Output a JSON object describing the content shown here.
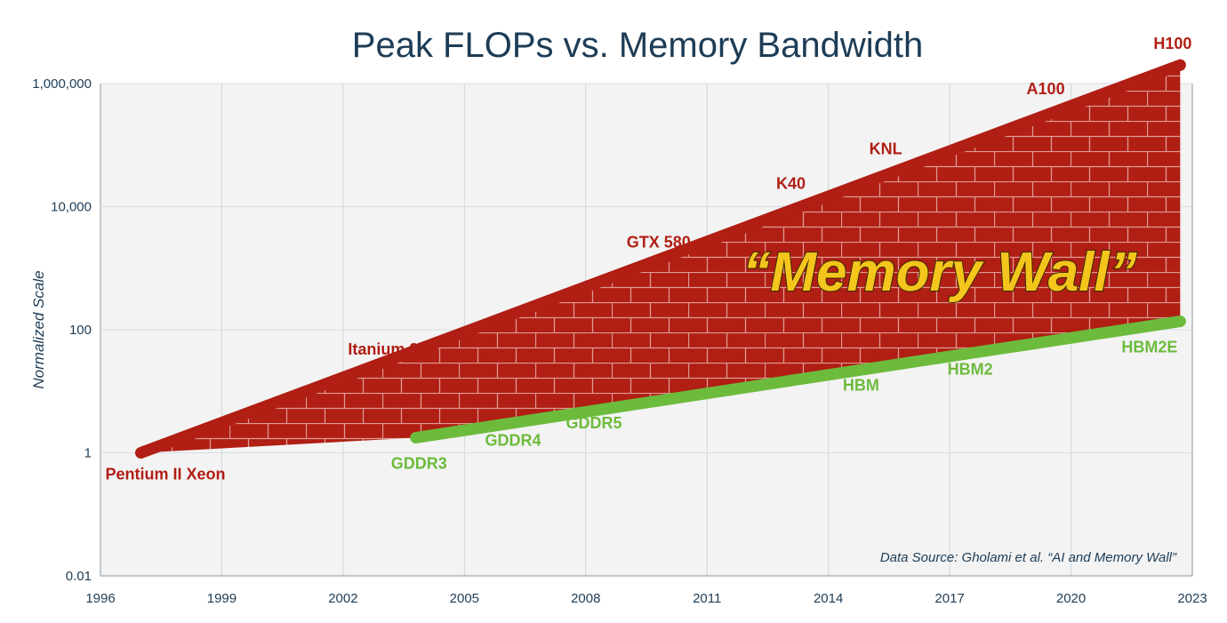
{
  "chart_data": {
    "type": "line",
    "title": "Peak FLOPs vs. Memory Bandwidth",
    "xlabel": "",
    "ylabel": "Normalized Scale",
    "xlim": [
      1996,
      2023
    ],
    "ylim": [
      0.01,
      1000000
    ],
    "yscale": "log",
    "grid": true,
    "x_ticks": [
      "1996",
      "1999",
      "2002",
      "2005",
      "2008",
      "2011",
      "2014",
      "2017",
      "2020",
      "2023"
    ],
    "y_ticks": [
      "0.01",
      "1",
      "100",
      "10,000",
      "1,000,000"
    ],
    "series": [
      {
        "color": "#b01e14",
        "points": [
          {
            "label": "Pentium II Xeon",
            "x": 1997,
            "y": 1
          },
          {
            "label": "Itanium 2",
            "x": 2003,
            "y": 30
          },
          {
            "label": "GTX 580",
            "x": 2010,
            "y": 1550
          },
          {
            "label": "K40",
            "x": 2013.7,
            "y": 12600
          },
          {
            "label": "KNL",
            "x": 2016,
            "y": 46000
          },
          {
            "label": "A100",
            "x": 2020,
            "y": 450000
          },
          {
            "label": "H100",
            "x": 2022.7,
            "y": 2000000
          }
        ]
      },
      {
        "color": "#6dbb3c",
        "points": [
          {
            "label": "GDDR3",
            "x": 2003.8,
            "y": 1.76
          },
          {
            "label": "GDDR4",
            "x": 2006.5,
            "y": 3.3
          },
          {
            "label": "GDDR5",
            "x": 2008.5,
            "y": 5.2
          },
          {
            "label": "HBM",
            "x": 2015.5,
            "y": 26
          },
          {
            "label": "HBM2",
            "x": 2018,
            "y": 47
          },
          {
            "label": "HBM2E",
            "x": 2022.7,
            "y": 137
          }
        ]
      }
    ],
    "annotation": "“Memory Wall”",
    "source": "Data Source: Gholami et al. “AI and Memory Wall”",
    "colors": {
      "wall_fill": "#b01e14",
      "wall_text": "#f4c51c",
      "plot_bg": "#f3f3f3"
    }
  }
}
